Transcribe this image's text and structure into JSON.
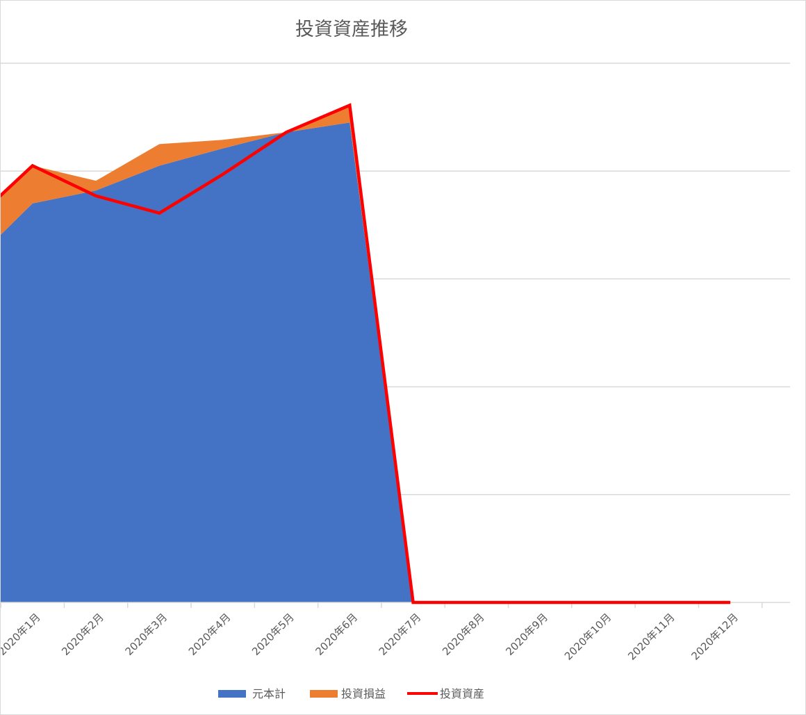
{
  "chart_data": {
    "type": "area",
    "title": "投資資産推移",
    "categories": [
      "",
      "2020年1月",
      "2020年2月",
      "2020年3月",
      "2020年4月",
      "2020年5月",
      "2020年6月",
      "2020年7月",
      "2020年8月",
      "2020年9月",
      "2020年10月",
      "2020年11月",
      "2020年12月"
    ],
    "ylim": [
      0,
      5
    ],
    "grid": true,
    "legend_position": "bottom",
    "series": [
      {
        "name": "元本計",
        "type": "stacked-area",
        "color": "#4472c4",
        "values": [
          3.12,
          3.7,
          3.82,
          4.05,
          4.21,
          4.36,
          4.45,
          0,
          0,
          0,
          0,
          0,
          0
        ]
      },
      {
        "name": "投資損益",
        "type": "stacked-area",
        "color": "#ed7d31",
        "values": [
          0.38,
          0.35,
          0.09,
          0.2,
          0.08,
          0.0,
          0.16,
          0,
          0,
          0,
          0,
          0,
          0
        ]
      },
      {
        "name": "投資資産",
        "type": "line",
        "color": "#ff0000",
        "values": [
          3.5,
          4.05,
          3.77,
          3.61,
          3.97,
          4.36,
          4.61,
          0,
          0,
          0,
          0,
          0,
          0
        ]
      }
    ]
  }
}
